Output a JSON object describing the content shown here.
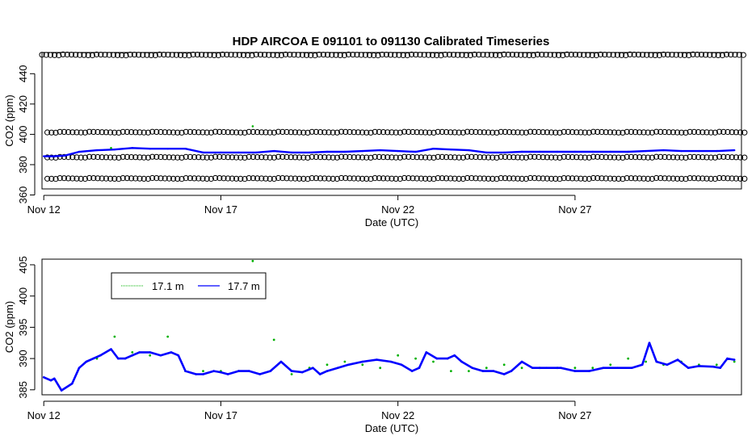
{
  "title": "HDP   AIRCOA  E   091101  to  091130   Calibrated Timeseries",
  "colors": {
    "series_17_1": "#00b000",
    "series_17_7": "#0000ff",
    "reference": "#000000"
  },
  "chart_data": [
    {
      "type": "scatter",
      "title": "HDP   AIRCOA  E   091101  to  091130   Calibrated Timeseries",
      "xlabel": "Date (UTC)",
      "ylabel": "CO2 (ppm)",
      "x_ticks": [
        "Nov 12",
        "Nov 17",
        "Nov 22",
        "Nov 27"
      ],
      "x_tick_days": [
        12,
        17,
        22,
        27
      ],
      "xlim": [
        11.95,
        31.7
      ],
      "ylim": [
        364,
        454
      ],
      "y_ticks": [
        360,
        380,
        400,
        420,
        440
      ],
      "grid": false,
      "reference_levels": [
        {
          "value": 452.5,
          "x_start": 11.95,
          "x_end": 31.8
        },
        {
          "value": 401.5,
          "x_start": 12.1,
          "x_end": 31.8
        },
        {
          "value": 385,
          "x_start": 12.1,
          "x_end": 31.8
        },
        {
          "value": 371,
          "x_start": 12.1,
          "x_end": 31.8
        }
      ],
      "series": [
        {
          "label": "17.7 m",
          "x": [
            12.0,
            12.3,
            12.6,
            13.0,
            13.5,
            14.0,
            14.5,
            15.0,
            15.5,
            16.0,
            16.5,
            17.0,
            17.5,
            18.0,
            18.5,
            19.0,
            19.5,
            20.0,
            20.5,
            21.0,
            21.5,
            22.0,
            22.5,
            23.0,
            23.5,
            24.0,
            24.5,
            25.0,
            25.5,
            26.0,
            26.5,
            27.0,
            27.5,
            28.0,
            28.5,
            29.0,
            29.5,
            30.0,
            30.5,
            31.0,
            31.5
          ],
          "y": [
            385.5,
            385.5,
            386.0,
            388.5,
            389.5,
            390.0,
            391.0,
            390.5,
            390.5,
            390.5,
            388.0,
            388.0,
            388.0,
            388.0,
            389.0,
            388.0,
            388.0,
            388.5,
            388.5,
            389.0,
            389.5,
            389.0,
            388.5,
            390.5,
            390.0,
            389.5,
            388.0,
            388.0,
            388.5,
            388.5,
            388.5,
            388.5,
            388.5,
            388.5,
            388.5,
            389.0,
            389.5,
            389.0,
            389.0,
            389.0,
            389.5
          ]
        },
        {
          "label": "17.1 m",
          "x": [
            17.9,
            13.9
          ],
          "y": [
            405.3,
            391.0
          ]
        }
      ]
    },
    {
      "type": "line",
      "xlabel": "Date (UTC)",
      "ylabel": "CO2 (ppm)",
      "x_ticks": [
        "Nov 12",
        "Nov 17",
        "Nov 22",
        "Nov 27"
      ],
      "x_tick_days": [
        12,
        17,
        22,
        27
      ],
      "xlim": [
        11.95,
        31.7
      ],
      "ylim": [
        384.2,
        405.9
      ],
      "y_ticks": [
        385,
        390,
        395,
        400,
        405
      ],
      "grid": false,
      "legend_position": "top-left",
      "series": [
        {
          "name": "17.7 m",
          "x": [
            12.0,
            12.2,
            12.3,
            12.5,
            12.8,
            13.0,
            13.2,
            13.4,
            13.6,
            13.9,
            14.1,
            14.3,
            14.5,
            14.7,
            15.0,
            15.3,
            15.6,
            15.8,
            16.0,
            16.3,
            16.5,
            16.8,
            17.0,
            17.2,
            17.5,
            17.8,
            18.1,
            18.4,
            18.7,
            19.0,
            19.3,
            19.6,
            19.8,
            20.0,
            20.3,
            20.6,
            21.0,
            21.4,
            21.8,
            22.1,
            22.4,
            22.6,
            22.8,
            23.1,
            23.4,
            23.6,
            23.8,
            24.1,
            24.4,
            24.7,
            25.0,
            25.2,
            25.5,
            25.8,
            26.2,
            26.6,
            27.0,
            27.4,
            27.8,
            28.2,
            28.6,
            28.9,
            29.1,
            29.3,
            29.6,
            29.9,
            30.2,
            30.5,
            30.9,
            31.1,
            31.3,
            31.5
          ],
          "y": [
            387.0,
            386.5,
            386.8,
            384.9,
            386.0,
            388.5,
            389.5,
            390.0,
            390.5,
            391.5,
            390.0,
            390.0,
            390.5,
            391.0,
            391.0,
            390.5,
            391.0,
            390.5,
            388.0,
            387.5,
            387.5,
            388.0,
            387.8,
            387.5,
            388.0,
            388.0,
            387.5,
            388.0,
            389.5,
            388.0,
            387.8,
            388.5,
            387.5,
            388.0,
            388.5,
            389.0,
            389.5,
            389.8,
            389.5,
            389.0,
            388.0,
            388.5,
            391.0,
            390.0,
            390.0,
            390.5,
            389.5,
            388.5,
            388.0,
            388.0,
            387.5,
            388.0,
            389.5,
            388.5,
            388.5,
            388.5,
            388.0,
            388.0,
            388.5,
            388.5,
            388.5,
            389.0,
            392.5,
            389.5,
            389.0,
            389.8,
            388.5,
            388.8,
            388.7,
            388.5,
            390.0,
            389.8
          ]
        },
        {
          "name": "17.1 m",
          "x": [
            13.5,
            14.0,
            14.5,
            15.0,
            15.5,
            16.0,
            16.5,
            17.0,
            17.5,
            17.9,
            18.5,
            19.0,
            19.5,
            20.0,
            20.5,
            21.0,
            21.5,
            22.0,
            22.5,
            23.0,
            23.5,
            24.0,
            24.5,
            25.0,
            25.5,
            26.0,
            26.5,
            27.0,
            27.5,
            28.0,
            28.5,
            29.0,
            29.5,
            30.0,
            30.5,
            31.0,
            31.5
          ],
          "y": [
            390.0,
            393.5,
            391.0,
            390.5,
            393.5,
            388.0,
            388.0,
            388.0,
            388.0,
            405.6,
            393.0,
            387.5,
            388.5,
            389.0,
            389.5,
            389.0,
            388.5,
            390.5,
            390.0,
            389.5,
            388.0,
            388.0,
            388.5,
            389.0,
            388.5,
            388.5,
            388.5,
            388.5,
            388.5,
            389.0,
            390.0,
            389.5,
            389.0,
            389.5,
            389.0,
            389.0,
            389.5
          ]
        }
      ]
    }
  ]
}
